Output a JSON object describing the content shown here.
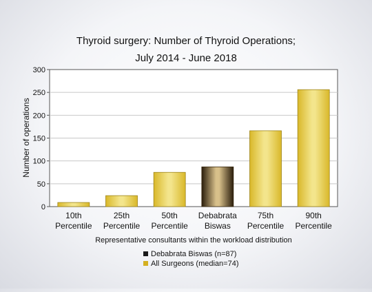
{
  "chart_data": {
    "type": "bar",
    "title": [
      "Thyroid surgery: Number of Thyroid Operations;",
      "July 2014 - June 2018"
    ],
    "xlabel": "Representative consultants within the workload distribution",
    "ylabel": "Number of operations",
    "ylim": [
      0,
      300
    ],
    "yticks": [
      0,
      50,
      100,
      150,
      200,
      250,
      300
    ],
    "grid": true,
    "categories": [
      [
        "10th",
        "Percentile"
      ],
      [
        "25th",
        "Percentile"
      ],
      [
        "50th",
        "Percentile"
      ],
      [
        "Debabrata",
        "Biswas"
      ],
      [
        "75th",
        "Percentile"
      ],
      [
        "90th",
        "Percentile"
      ]
    ],
    "values": [
      9,
      24,
      75,
      87,
      166,
      256
    ],
    "highlight_index": 3,
    "colors": {
      "all_surgeons": "#d9b82a",
      "all_surgeons_light": "#f3e58c",
      "consultant": "#2a1d0c",
      "consultant_light": "#d8c08a"
    },
    "legend": {
      "placement": "bottom",
      "entries": [
        {
          "label": "Debabrata Biswas (n=87)",
          "color": "#1a1a1a"
        },
        {
          "label": "All Surgeons (median=74)",
          "color": "#d4b021"
        }
      ]
    }
  }
}
